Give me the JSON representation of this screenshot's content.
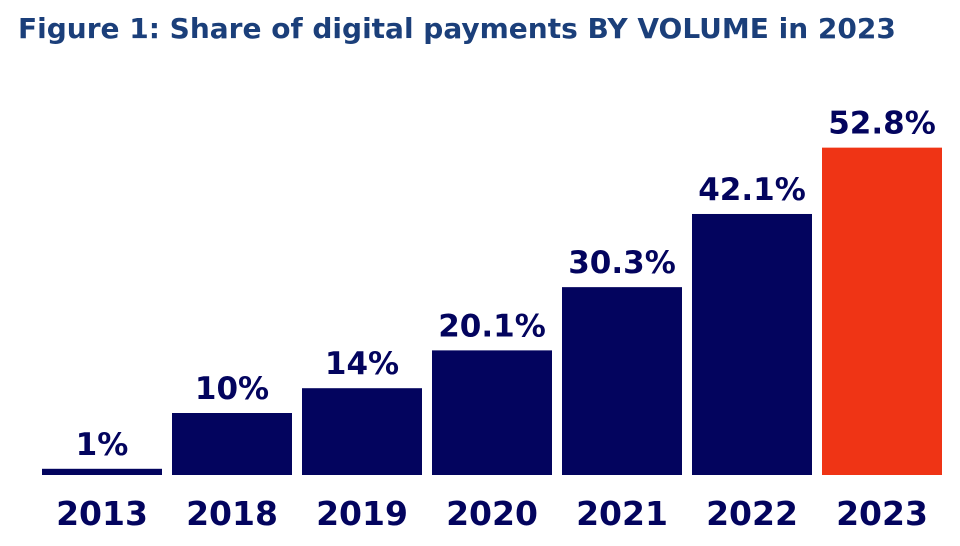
{
  "chart_data": {
    "type": "bar",
    "title": "Figure 1: Share of digital payments BY VOLUME in 2023",
    "xlabel": "",
    "ylabel": "",
    "categories": [
      "2013",
      "2018",
      "2019",
      "2020",
      "2021",
      "2022",
      "2023"
    ],
    "values": [
      1,
      10,
      14,
      20.1,
      30.3,
      42.1,
      52.8
    ],
    "data_labels": [
      "1%",
      "10%",
      "14%",
      "20.1%",
      "30.3%",
      "42.1%",
      "52.8%"
    ],
    "unit": "%",
    "ylim": [
      0,
      55
    ],
    "grid": false,
    "legend": "none",
    "highlight_index": 6,
    "colors": {
      "bar": "#03045e",
      "highlight": "#ef3415",
      "label": "#03045e",
      "title": "#1b3f7a"
    }
  }
}
